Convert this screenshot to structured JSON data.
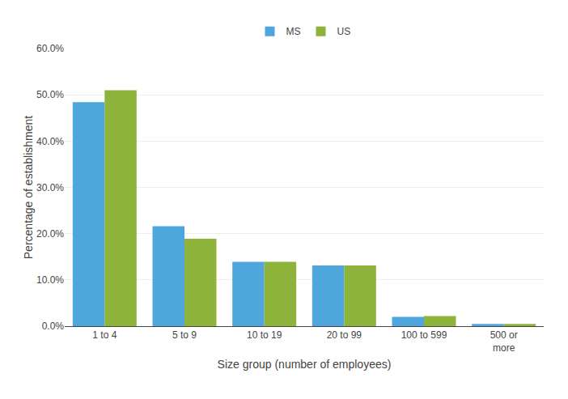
{
  "chart_data": {
    "type": "bar",
    "xlabel": "Size group (number of employees)",
    "ylabel": "Percentage of establishment",
    "categories": [
      "1 to 4",
      "5 to 9",
      "10 to 19",
      "20 to 99",
      "100 to 599",
      "500 or\nmore"
    ],
    "series": [
      {
        "name": "MS",
        "color": "#4EA6DC",
        "values": [
          0.484,
          0.216,
          0.139,
          0.131,
          0.02,
          0.005
        ]
      },
      {
        "name": "US",
        "color": "#8DB33A",
        "values": [
          0.51,
          0.189,
          0.139,
          0.131,
          0.022,
          0.005
        ]
      }
    ],
    "ylim": [
      0,
      0.6
    ],
    "yticks": [
      {
        "value": 0.0,
        "label": "0.0%"
      },
      {
        "value": 0.1,
        "label": "10.0%"
      },
      {
        "value": 0.2,
        "label": "20.0%"
      },
      {
        "value": 0.3,
        "label": "30.0%"
      },
      {
        "value": 0.4,
        "label": "40.0%"
      },
      {
        "value": 0.5,
        "label": "50.0%"
      },
      {
        "value": 0.6,
        "label": "60.0%"
      }
    ],
    "grid": true,
    "legend": "top"
  }
}
